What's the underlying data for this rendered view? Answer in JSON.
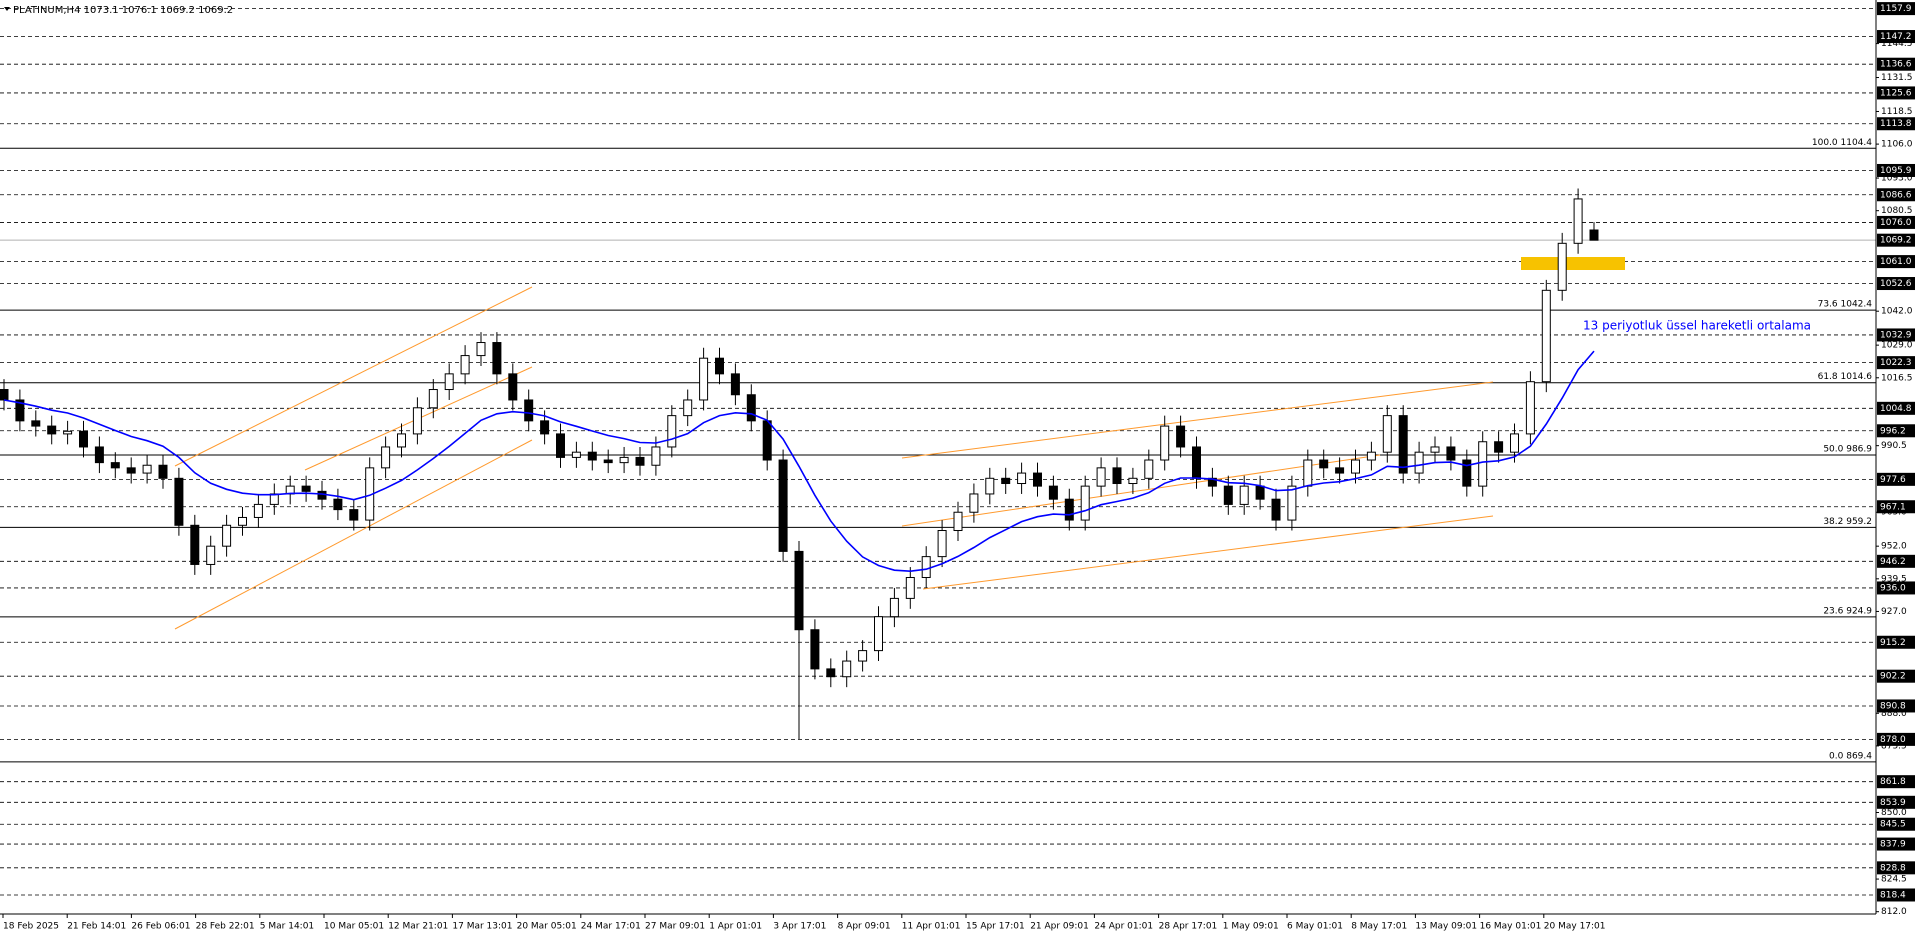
{
  "chart_data": {
    "type": "candlestick",
    "title": "PLATINUM,H4  1073.1 1076.1 1069.2 1069.2",
    "x_labels": [
      "18 Feb 2025",
      "21 Feb 14:01",
      "26 Feb 06:01",
      "28 Feb 22:01",
      "5 Mar 14:01",
      "10 Mar 05:01",
      "12 Mar 21:01",
      "17 Mar 13:01",
      "20 Mar 05:01",
      "24 Mar 17:01",
      "27 Mar 09:01",
      "1 Apr 01:01",
      "3 Apr 17:01",
      "8 Apr 09:01",
      "11 Apr 01:01",
      "15 Apr 17:01",
      "21 Apr 09:01",
      "24 Apr 01:01",
      "28 Apr 17:01",
      "1 May 09:01",
      "6 May 01:01",
      "8 May 17:01",
      "13 May 09:01",
      "16 May 01:01",
      "20 May 17:01"
    ],
    "open": [
      1012,
      1008,
      1000,
      998,
      995,
      996,
      990,
      984,
      982,
      980,
      983,
      978,
      960,
      945,
      952,
      960,
      963,
      968,
      972,
      975,
      973,
      970,
      966,
      962,
      982,
      990,
      995,
      1005,
      1012,
      1018,
      1025,
      1030,
      1018,
      1008,
      1000,
      995,
      986,
      988,
      985,
      984,
      986,
      983,
      990,
      1002,
      1008,
      1024,
      1018,
      1010,
      1000,
      985,
      950,
      920,
      905,
      902,
      908,
      912,
      925,
      932,
      940,
      948,
      958,
      965,
      972,
      978,
      976,
      980,
      975,
      970,
      962,
      975,
      982,
      976,
      978,
      985,
      998,
      990,
      978,
      975,
      968,
      975,
      970,
      962,
      975,
      985,
      982,
      980,
      985,
      988,
      1002,
      980,
      988,
      990,
      985,
      975,
      992,
      988,
      995,
      1015,
      1050,
      1068,
      1073.1
    ],
    "high": [
      1016,
      1012,
      1004,
      1002,
      1000,
      1000,
      994,
      988,
      986,
      987,
      987,
      982,
      964,
      956,
      964,
      967,
      972,
      976,
      979,
      979,
      977,
      974,
      970,
      986,
      994,
      999,
      1009,
      1016,
      1022,
      1029,
      1034,
      1034,
      1022,
      1012,
      1004,
      999,
      992,
      992,
      989,
      990,
      990,
      994,
      1006,
      1012,
      1028,
      1028,
      1022,
      1014,
      1004,
      989,
      954,
      924,
      909,
      912,
      916,
      929,
      936,
      944,
      952,
      962,
      969,
      976,
      982,
      982,
      984,
      984,
      979,
      974,
      979,
      986,
      986,
      982,
      989,
      1002,
      1002,
      994,
      982,
      979,
      979,
      979,
      974,
      979,
      989,
      989,
      986,
      989,
      992,
      1006,
      1006,
      992,
      994,
      994,
      989,
      996,
      996,
      999,
      1019,
      1054,
      1072,
      1089,
      1076.1
    ],
    "low": [
      1004,
      996,
      994,
      991,
      991,
      986,
      980,
      978,
      976,
      976,
      974,
      956,
      941,
      941,
      948,
      956,
      959,
      964,
      968,
      969,
      966,
      962,
      958,
      958,
      978,
      986,
      991,
      1001,
      1008,
      1014,
      1021,
      1014,
      1004,
      996,
      991,
      982,
      982,
      981,
      980,
      980,
      979,
      979,
      986,
      998,
      1004,
      1014,
      1006,
      996,
      981,
      946,
      878,
      901,
      898,
      898,
      904,
      908,
      921,
      928,
      936,
      944,
      954,
      961,
      968,
      972,
      972,
      971,
      966,
      958,
      958,
      971,
      972,
      972,
      974,
      981,
      986,
      974,
      971,
      964,
      964,
      966,
      958,
      958,
      971,
      978,
      976,
      976,
      981,
      984,
      976,
      976,
      984,
      981,
      971,
      971,
      984,
      984,
      991,
      1011,
      1046,
      1064,
      1069.2
    ],
    "close": [
      1008,
      1000,
      998,
      995,
      996,
      990,
      984,
      982,
      980,
      983,
      978,
      960,
      945,
      952,
      960,
      963,
      968,
      972,
      975,
      973,
      970,
      966,
      962,
      982,
      990,
      995,
      1005,
      1012,
      1018,
      1025,
      1030,
      1018,
      1008,
      1000,
      995,
      986,
      988,
      985,
      984,
      986,
      983,
      990,
      1002,
      1008,
      1024,
      1018,
      1010,
      1000,
      985,
      950,
      920,
      905,
      902,
      908,
      912,
      925,
      932,
      940,
      948,
      958,
      965,
      972,
      978,
      976,
      980,
      975,
      970,
      962,
      975,
      982,
      976,
      978,
      985,
      998,
      990,
      978,
      975,
      968,
      975,
      970,
      962,
      975,
      985,
      982,
      980,
      985,
      988,
      1002,
      980,
      988,
      990,
      985,
      975,
      992,
      988,
      995,
      1015,
      1050,
      1068,
      1085,
      1069.2
    ],
    "ema": {
      "name": "13 periyotluk üssel hareketli ortalama",
      "color": "#0000ff",
      "values": [
        1008,
        1006.9,
        1005.6,
        1004.1,
        1003.0,
        1001.1,
        998.7,
        996.3,
        994.0,
        992.4,
        990.3,
        986.0,
        980.1,
        976.1,
        973.8,
        972.3,
        971.7,
        971.7,
        972.2,
        972.3,
        972.0,
        971.1,
        969.8,
        971.5,
        974.2,
        977.2,
        981.2,
        985.6,
        990.2,
        995.2,
        1000.2,
        1002.7,
        1003.5,
        1003.0,
        1001.9,
        999.6,
        997.9,
        996.1,
        994.4,
        993.2,
        991.7,
        991.5,
        993.0,
        995.1,
        999.3,
        1002.0,
        1003.1,
        1002.7,
        1000.2,
        993.0,
        982.6,
        971.5,
        961.6,
        953.9,
        947.9,
        944.6,
        942.8,
        942.4,
        943.2,
        945.3,
        948.1,
        951.5,
        955.3,
        958.3,
        961.4,
        963.3,
        964.3,
        964.0,
        965.6,
        967.9,
        969.1,
        970.4,
        972.5,
        976.1,
        978.1,
        978.1,
        977.7,
        976.3,
        976.1,
        975.2,
        973.3,
        973.6,
        975.2,
        976.2,
        976.7,
        977.9,
        979.3,
        982.6,
        982.2,
        983.0,
        984.0,
        984.2,
        982.9,
        984.2,
        984.7,
        986.2,
        990.3,
        998.8,
        1008.7,
        1019.6,
        1026.7
      ]
    },
    "ylim": [
      812,
      1157.9
    ],
    "yticks": [
      1144.5,
      1131.5,
      1118.5,
      {
        "value": 1106,
        "label": "1106.0"
      },
      {
        "value": 1093,
        "label": "1093.0"
      },
      1080.5,
      {
        "value": 1042,
        "label": "1042.0"
      },
      {
        "value": 1029,
        "label": "1029.0"
      },
      1016.5,
      990.5,
      {
        "value": 965,
        "label": "965.0"
      },
      {
        "value": 952,
        "label": "952.0"
      },
      939.5,
      {
        "value": 927,
        "label": "927.0"
      },
      {
        "value": 888,
        "label": "888.0"
      },
      875.5,
      {
        "value": 850,
        "label": "850.0"
      },
      824.5,
      {
        "value": 812,
        "label": "812.0"
      }
    ],
    "price_levels": [
      1157.9,
      1147.2,
      1136.6,
      1125.6,
      1113.8,
      1095.9,
      1086.6,
      {
        "value": 1076,
        "label": "1076.0"
      },
      {
        "value": 1061,
        "label": "1061.0"
      },
      1052.6,
      1032.9,
      1022.3,
      1004.8,
      996.2,
      977.6,
      967.1,
      946.2,
      {
        "value": 936,
        "label": "936.0"
      },
      915.2,
      902.2,
      890.8,
      {
        "value": 878,
        "label": "878.0"
      },
      861.8,
      853.9,
      845.5,
      837.9,
      828.8,
      818.4
    ],
    "current_price": 1069.2,
    "fib_levels": [
      {
        "value": 1104.4,
        "label": "100.0 1104.4"
      },
      {
        "value": 1042.4,
        "label": "73.6 1042.4"
      },
      {
        "value": 1014.6,
        "label": "61.8 1014.6"
      },
      {
        "value": 986.9,
        "label": "50.0 986.9"
      },
      {
        "value": 959.2,
        "label": "38.2 959.2"
      },
      {
        "value": 924.9,
        "label": "23.6 924.9"
      },
      {
        "value": 869.4,
        "label": "0.0 869.4"
      }
    ]
  }
}
